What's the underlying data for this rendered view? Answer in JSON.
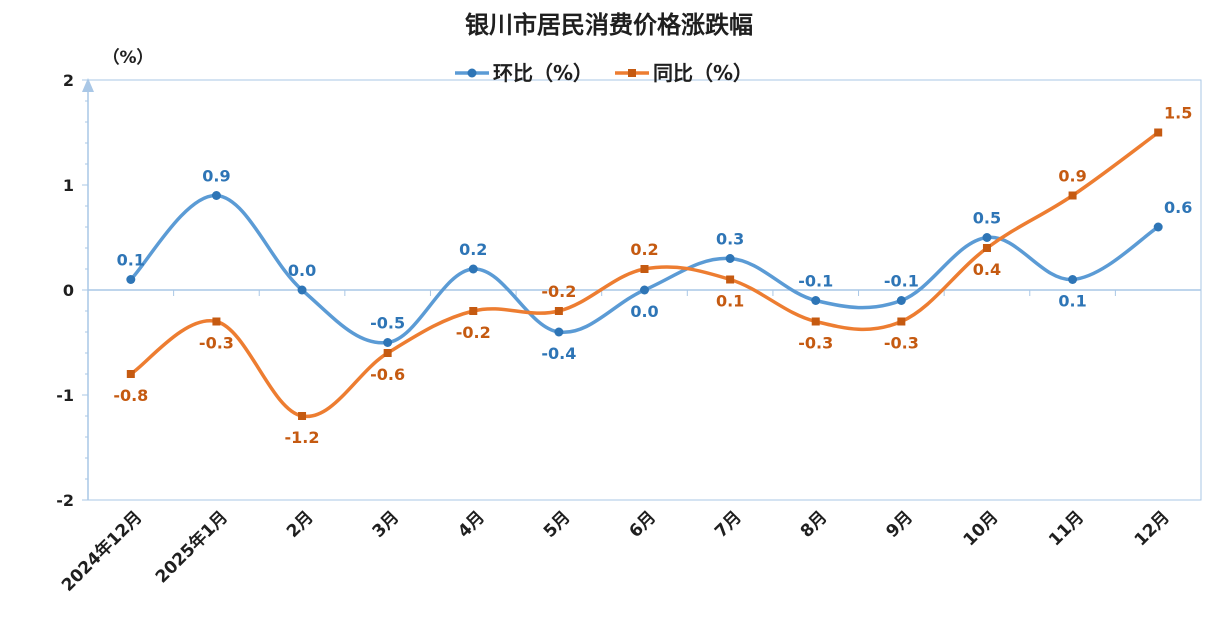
{
  "chart_data": {
    "type": "line",
    "title": "银川市居民消费价格涨跌幅",
    "ylabel": "（%）",
    "ylim": [
      -2,
      2
    ],
    "yticks": [
      "2",
      "1",
      "0",
      "-1",
      "-2"
    ],
    "categories": [
      "2024年12月",
      "2025年1月",
      "2月",
      "3月",
      "4月",
      "5月",
      "6月",
      "7月",
      "8月",
      "9月",
      "10月",
      "11月",
      "12月"
    ],
    "series": [
      {
        "name": "环比（%）",
        "color": "#5b9bd5",
        "label_color": "#2e75b6",
        "marker": "circle",
        "values": [
          0.1,
          0.9,
          0.0,
          -0.5,
          0.2,
          -0.4,
          0.0,
          0.3,
          -0.1,
          -0.1,
          0.5,
          0.1,
          0.6
        ],
        "labels": [
          "0.1",
          "0.9",
          "0.0",
          "-0.5",
          "0.2",
          "-0.4",
          "0.0",
          "0.3",
          "-0.1",
          "-0.1",
          "0.5",
          "0.1",
          "0.6"
        ]
      },
      {
        "name": "同比（%）",
        "color": "#ed7d31",
        "label_color": "#c55a11",
        "marker": "square",
        "values": [
          -0.8,
          -0.3,
          -1.2,
          -0.6,
          -0.2,
          -0.2,
          0.2,
          0.1,
          -0.3,
          -0.3,
          0.4,
          0.9,
          1.5
        ],
        "labels": [
          "-0.8",
          "-0.3",
          "-1.2",
          "-0.6",
          "-0.2",
          "-0.2",
          "0.2",
          "0.1",
          "-0.3",
          "-0.3",
          "0.4",
          "0.9",
          "1.5"
        ]
      }
    ],
    "legend": "top-center",
    "grid": false
  }
}
